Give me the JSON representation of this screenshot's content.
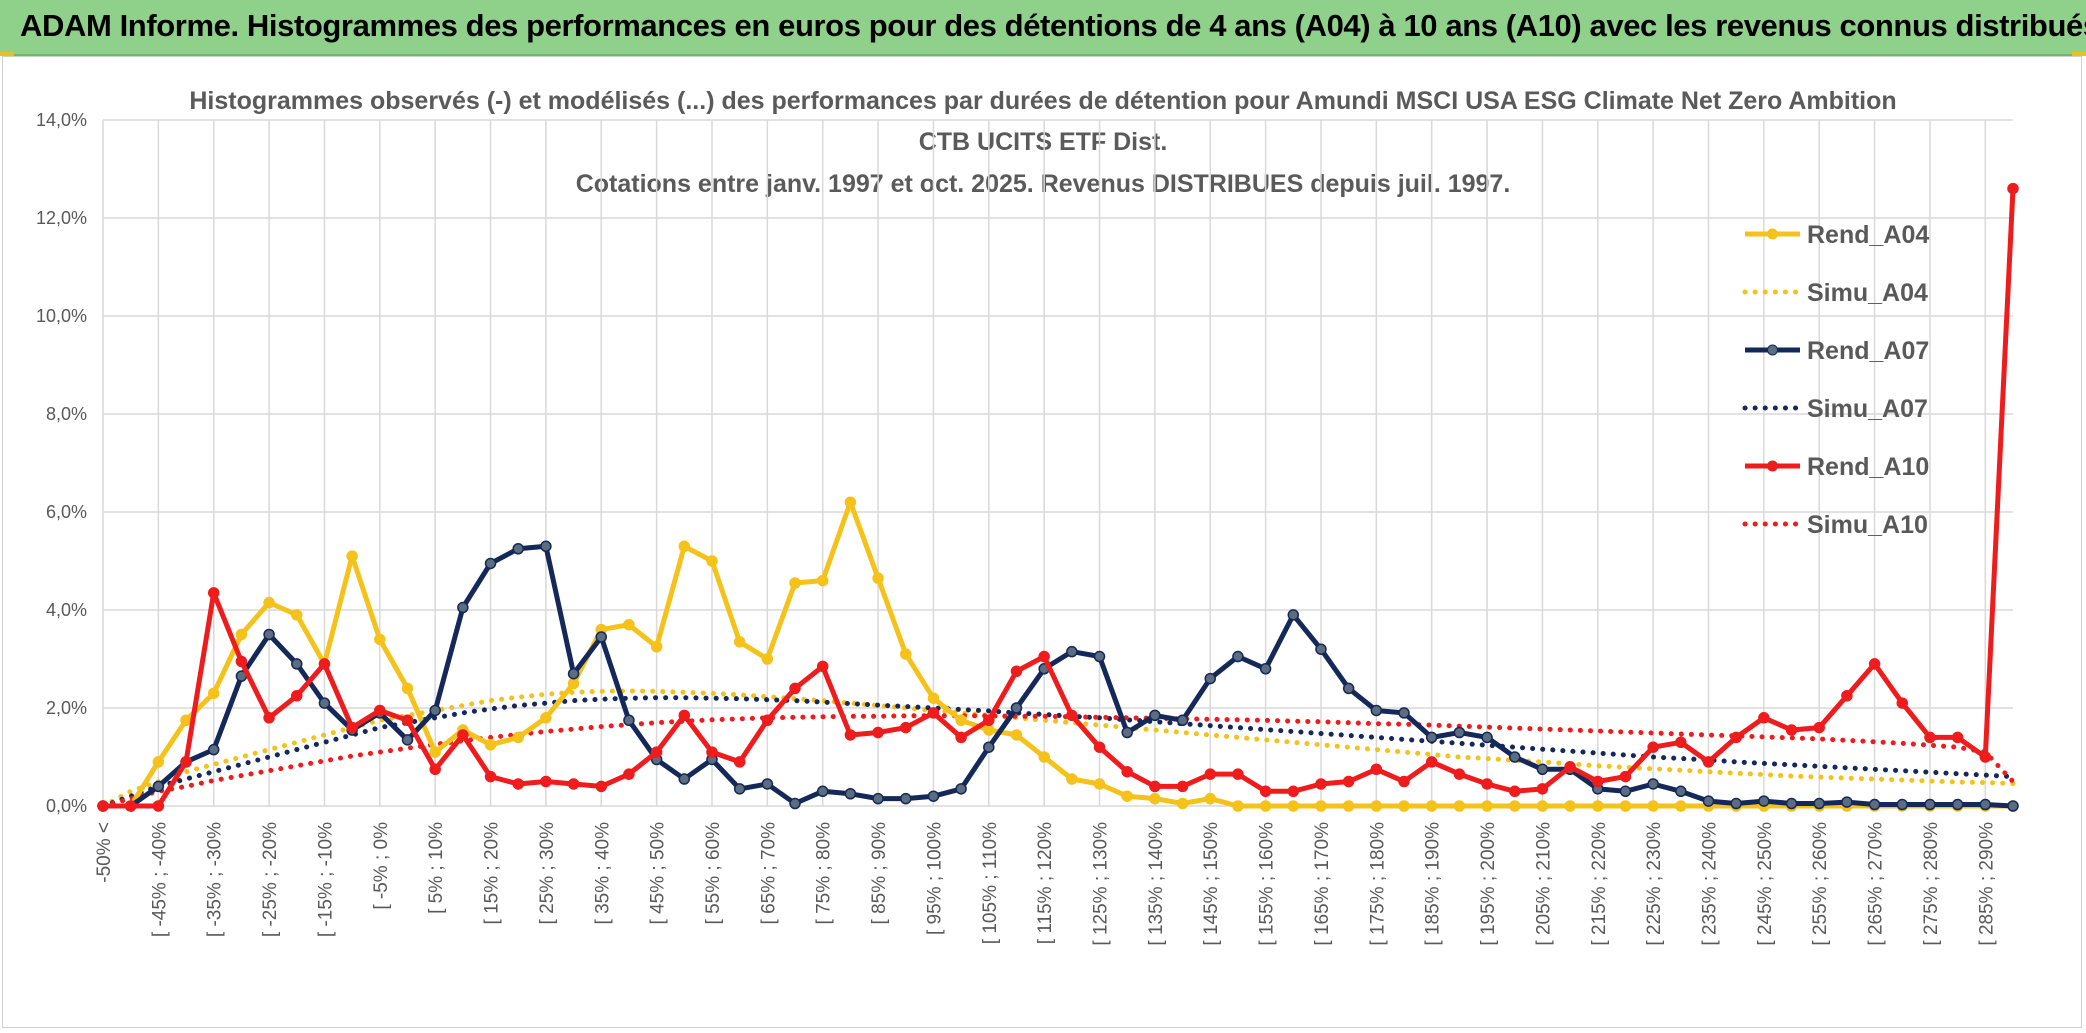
{
  "banner": {
    "text": "ADAM Informe. Histogrammes des performances en euros pour des détentions de 4 ans (A04) à 10 ans (A10) avec les revenus connus distribués"
  },
  "chart_data": {
    "type": "line",
    "title_lines": [
      "Histogrammes observés (-) et modélisés (...) des performances par durées de détention pour Amundi MSCI USA ESG Climate Net Zero Ambition",
      "CTB UCITS ETF Dist.",
      "Cotations entre janv. 1997 et oct. 2025. Revenus DISTRIBUES depuis juil. 1997."
    ],
    "xlabel": "",
    "ylabel": "",
    "ylim": [
      0,
      14
    ],
    "y_ticks": [
      "0,0%",
      "2,0%",
      "4,0%",
      "6,0%",
      "8,0%",
      "10,0%",
      "12,0%",
      "14,0%"
    ],
    "x_tick_labels": [
      "-50% <",
      "[ -45% ; -40%",
      "[ -35% ; -30%",
      "[ -25% ; -20%",
      "[ -15% ; -10%",
      "[ -5% ; 0%",
      "[ 5% ; 10%",
      "[ 15% ; 20%",
      "[ 25% ; 30%",
      "[ 35% ; 40%",
      "[ 45% ; 50%",
      "[ 55% ; 60%",
      "[ 65% ; 70%",
      "[ 75% ; 80%",
      "[ 85% ; 90%",
      "[ 95% ; 100%",
      "[ 105% ; 110%",
      "[ 115% ; 120%",
      "[ 125% ; 130%",
      "[ 135% ; 140%",
      "[ 145% ; 150%",
      "[ 155% ; 160%",
      "[ 165% ; 170%",
      "[ 175% ; 180%",
      "[ 185% ; 190%",
      "[ 195% ; 200%",
      "[ 205% ; 210%",
      "[ 215% ; 220%",
      "[ 225% ; 230%",
      "[ 235% ; 240%",
      "[ 245% ; 250%",
      "[ 255% ; 260%",
      "[ 265% ; 270%",
      "[ 275% ; 280%",
      "[ 285% ; 290%"
    ],
    "grid": true,
    "legend_position": "right",
    "series": [
      {
        "name": "Rend_A04",
        "color": "#f5c21b",
        "style": "solid",
        "markers": true,
        "values": [
          0,
          0,
          0.9,
          1.75,
          2.3,
          3.5,
          4.15,
          3.9,
          2.9,
          5.1,
          3.4,
          2.4,
          1.1,
          1.55,
          1.25,
          1.4,
          1.8,
          2.5,
          3.6,
          3.7,
          3.25,
          5.3,
          5.0,
          3.35,
          3.0,
          4.55,
          4.6,
          6.2,
          4.65,
          3.1,
          2.2,
          1.75,
          1.55,
          1.45,
          1.0,
          0.55,
          0.45,
          0.2,
          0.15,
          0.05,
          0.15,
          0,
          0,
          0,
          0,
          0,
          0,
          0,
          0,
          0,
          0,
          0,
          0,
          0,
          0,
          0,
          0,
          0,
          0,
          0,
          0,
          0,
          0,
          0,
          0,
          0,
          0,
          0,
          0,
          0
        ]
      },
      {
        "name": "Simu_A04",
        "color": "#f5c21b",
        "style": "dotted",
        "markers": false,
        "values": [
          0,
          0.3,
          0.5,
          0.7,
          0.85,
          1.0,
          1.15,
          1.3,
          1.45,
          1.6,
          1.75,
          1.85,
          1.95,
          2.05,
          2.15,
          2.22,
          2.28,
          2.32,
          2.34,
          2.35,
          2.34,
          2.32,
          2.3,
          2.27,
          2.23,
          2.19,
          2.15,
          2.1,
          2.05,
          2.0,
          1.95,
          1.9,
          1.85,
          1.8,
          1.75,
          1.7,
          1.65,
          1.6,
          1.55,
          1.5,
          1.45,
          1.4,
          1.35,
          1.3,
          1.25,
          1.2,
          1.15,
          1.1,
          1.05,
          1.0,
          0.97,
          0.93,
          0.9,
          0.86,
          0.82,
          0.79,
          0.76,
          0.73,
          0.7,
          0.67,
          0.64,
          0.61,
          0.59,
          0.57,
          0.55,
          0.53,
          0.51,
          0.49,
          0.48,
          0.46
        ]
      },
      {
        "name": "Rend_A07",
        "color": "#14285a",
        "style": "solid",
        "markers": true,
        "values": [
          0,
          0,
          0.4,
          0.9,
          1.15,
          2.65,
          3.5,
          2.9,
          2.1,
          1.55,
          1.9,
          1.35,
          1.95,
          4.05,
          4.95,
          5.25,
          5.3,
          2.7,
          3.45,
          1.75,
          0.95,
          0.55,
          0.95,
          0.35,
          0.45,
          0.05,
          0.3,
          0.25,
          0.15,
          0.15,
          0.2,
          0.35,
          1.2,
          2.0,
          2.8,
          3.15,
          3.05,
          1.5,
          1.85,
          1.75,
          2.6,
          3.05,
          2.8,
          3.9,
          3.2,
          2.4,
          1.95,
          1.9,
          1.4,
          1.5,
          1.4,
          1.0,
          0.75,
          0.75,
          0.35,
          0.3,
          0.45,
          0.3,
          0.1,
          0.05,
          0.1,
          0.05,
          0.05,
          0.08,
          0.03,
          0.03,
          0.03,
          0.03,
          0.03,
          0
        ]
      },
      {
        "name": "Simu_A07",
        "color": "#14285a",
        "style": "dotted",
        "markers": false,
        "values": [
          0,
          0.2,
          0.4,
          0.55,
          0.7,
          0.85,
          1.0,
          1.15,
          1.3,
          1.45,
          1.6,
          1.7,
          1.8,
          1.9,
          1.98,
          2.05,
          2.1,
          2.15,
          2.18,
          2.2,
          2.21,
          2.21,
          2.2,
          2.19,
          2.17,
          2.15,
          2.12,
          2.09,
          2.06,
          2.03,
          2.0,
          1.97,
          1.94,
          1.9,
          1.87,
          1.83,
          1.8,
          1.76,
          1.72,
          1.68,
          1.64,
          1.6,
          1.56,
          1.52,
          1.48,
          1.44,
          1.4,
          1.36,
          1.32,
          1.28,
          1.24,
          1.2,
          1.16,
          1.12,
          1.08,
          1.04,
          1.0,
          0.97,
          0.94,
          0.9,
          0.87,
          0.84,
          0.81,
          0.78,
          0.75,
          0.72,
          0.69,
          0.66,
          0.63,
          0.6
        ]
      },
      {
        "name": "Rend_A10",
        "color": "#ee1c1c",
        "style": "solid",
        "markers": true,
        "values": [
          0,
          0,
          0,
          0.9,
          4.35,
          2.95,
          1.8,
          2.25,
          2.9,
          1.6,
          1.95,
          1.75,
          0.75,
          1.45,
          0.6,
          0.45,
          0.5,
          0.45,
          0.4,
          0.65,
          1.1,
          1.85,
          1.1,
          0.9,
          1.75,
          2.4,
          2.85,
          1.45,
          1.5,
          1.6,
          1.9,
          1.4,
          1.75,
          2.75,
          3.05,
          1.85,
          1.2,
          0.7,
          0.4,
          0.4,
          0.65,
          0.65,
          0.3,
          0.3,
          0.45,
          0.5,
          0.75,
          0.5,
          0.9,
          0.65,
          0.45,
          0.3,
          0.35,
          0.8,
          0.5,
          0.6,
          1.2,
          1.3,
          0.9,
          1.4,
          1.8,
          1.55,
          1.6,
          2.25,
          2.9,
          2.1,
          1.4,
          1.4,
          1.0,
          12.6
        ]
      },
      {
        "name": "Simu_A10",
        "color": "#ee1c1c",
        "style": "dotted",
        "markers": false,
        "values": [
          0,
          0.15,
          0.3,
          0.4,
          0.52,
          0.62,
          0.72,
          0.82,
          0.92,
          1.02,
          1.1,
          1.18,
          1.26,
          1.33,
          1.4,
          1.46,
          1.52,
          1.57,
          1.62,
          1.66,
          1.7,
          1.73,
          1.76,
          1.78,
          1.8,
          1.81,
          1.82,
          1.83,
          1.83,
          1.84,
          1.84,
          1.84,
          1.84,
          1.83,
          1.83,
          1.82,
          1.81,
          1.8,
          1.79,
          1.78,
          1.77,
          1.76,
          1.75,
          1.73,
          1.72,
          1.7,
          1.68,
          1.67,
          1.65,
          1.63,
          1.61,
          1.59,
          1.57,
          1.55,
          1.53,
          1.51,
          1.49,
          1.47,
          1.45,
          1.43,
          1.41,
          1.39,
          1.37,
          1.34,
          1.31,
          1.28,
          1.24,
          1.2,
          1.1,
          0.5
        ]
      }
    ]
  }
}
